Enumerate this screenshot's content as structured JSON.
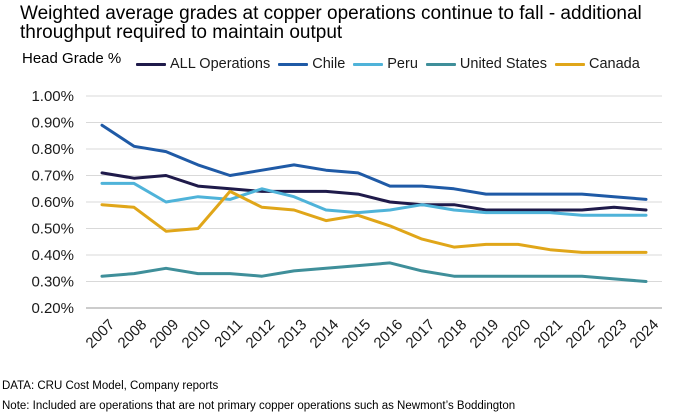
{
  "chart_data": {
    "type": "line",
    "title": "Weighted average grades at copper operations continue to fall - additional throughput required to maintain output",
    "ylabel": "Head Grade %",
    "xlabel": "",
    "x": [
      "2007",
      "2008",
      "2009",
      "2010",
      "2011",
      "2012",
      "2013",
      "2014",
      "2015",
      "2016",
      "2017",
      "2018",
      "2019",
      "2020",
      "2021",
      "2022",
      "2023",
      "2024"
    ],
    "ylim": [
      0.2,
      1.0
    ],
    "yticks": [
      "0.20%",
      "0.30%",
      "0.40%",
      "0.50%",
      "0.60%",
      "0.70%",
      "0.80%",
      "0.90%",
      "1.00%"
    ],
    "ytick_values": [
      0.2,
      0.3,
      0.4,
      0.5,
      0.6,
      0.7,
      0.8,
      0.9,
      1.0
    ],
    "grid": "horizontal",
    "legend_position": "top",
    "series": [
      {
        "name": "ALL Operations",
        "color": "#1f1a4a",
        "values": [
          0.71,
          0.69,
          0.7,
          0.66,
          0.65,
          0.64,
          0.64,
          0.64,
          0.63,
          0.6,
          0.59,
          0.59,
          0.57,
          0.57,
          0.57,
          0.57,
          0.58,
          0.57
        ]
      },
      {
        "name": "Chile",
        "color": "#1f5aa6",
        "values": [
          0.89,
          0.81,
          0.79,
          0.74,
          0.7,
          0.72,
          0.74,
          0.72,
          0.71,
          0.66,
          0.66,
          0.65,
          0.63,
          0.63,
          0.63,
          0.63,
          0.62,
          0.61
        ]
      },
      {
        "name": "Peru",
        "color": "#4fb3d9",
        "values": [
          0.67,
          0.67,
          0.6,
          0.62,
          0.61,
          0.65,
          0.62,
          0.57,
          0.56,
          0.57,
          0.59,
          0.57,
          0.56,
          0.56,
          0.56,
          0.55,
          0.55,
          0.55
        ]
      },
      {
        "name": "United States",
        "color": "#3f8f9a",
        "values": [
          0.32,
          0.33,
          0.35,
          0.33,
          0.33,
          0.32,
          0.34,
          0.35,
          0.36,
          0.37,
          0.34,
          0.32,
          0.32,
          0.32,
          0.32,
          0.32,
          0.31,
          0.3
        ]
      },
      {
        "name": "Canada",
        "color": "#e0a619",
        "values": [
          0.59,
          0.58,
          0.49,
          0.5,
          0.64,
          0.58,
          0.57,
          0.53,
          0.55,
          0.51,
          0.46,
          0.43,
          0.44,
          0.44,
          0.42,
          0.41,
          0.41,
          0.41
        ]
      }
    ]
  },
  "footer": {
    "source": "DATA: CRU Cost Model, Company reports",
    "note": "Note: Included are operations that are not primary copper operations such as Newmont’s Boddington"
  }
}
